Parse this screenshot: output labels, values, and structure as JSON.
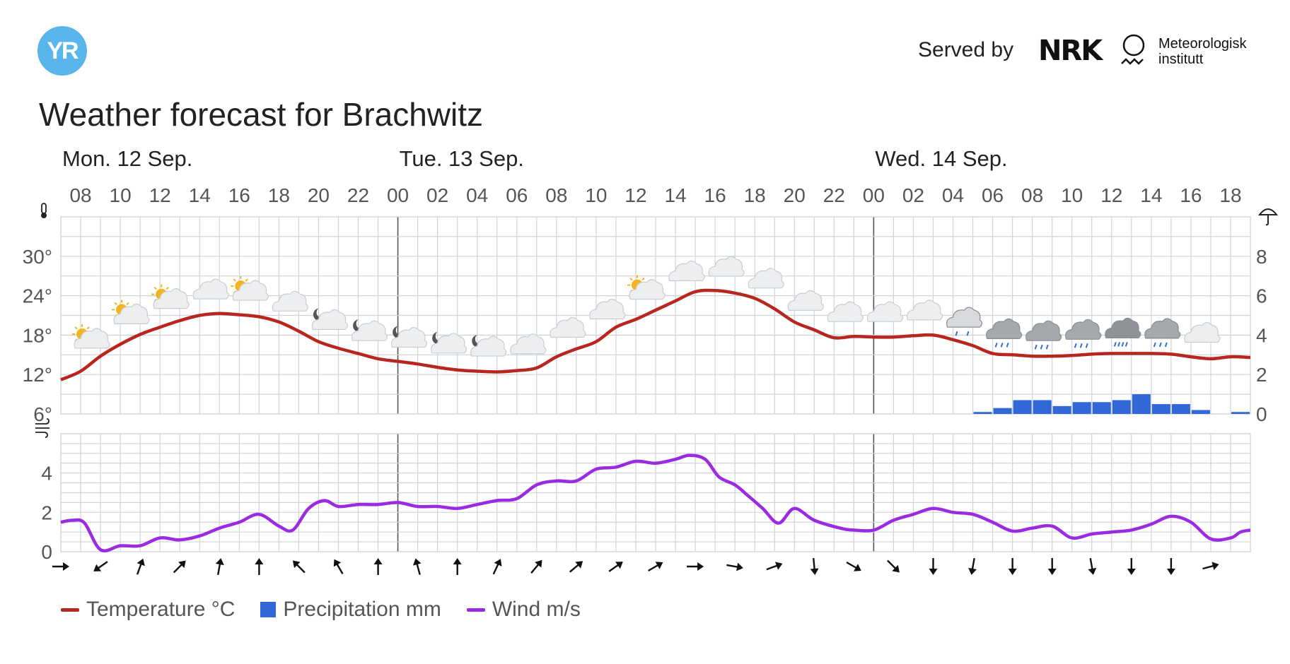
{
  "header": {
    "logo_text": "YR",
    "served_by": "Served by",
    "nrk_text": "NRK",
    "met_line1": "Meteorologisk",
    "met_line2": "institutt",
    "title": "Weather forecast for Brachwitz"
  },
  "colors": {
    "temperature": "#b8271f",
    "precipitation": "#3167d6",
    "wind": "#9a2be0",
    "grid": "#cfd3d8",
    "logo": "#59b6ec"
  },
  "legend": [
    {
      "label": "Temperature °C",
      "kind": "line",
      "color": "#b8271f"
    },
    {
      "label": "Precipitation mm",
      "kind": "box",
      "color": "#3167d6"
    },
    {
      "label": "Wind m/s",
      "kind": "line",
      "color": "#9a2be0"
    }
  ],
  "icons": {
    "temperature_axis": "thermometer-icon",
    "precipitation_axis": "umbrella-icon",
    "wind_axis": "wind-icon"
  },
  "chart_data": {
    "type": "line",
    "x_start_hour": 7,
    "hours": 60,
    "days": [
      {
        "label": "Mon. 12 Sep.",
        "start_hour": 7
      },
      {
        "label": "Tue. 13 Sep.",
        "start_hour": 24
      },
      {
        "label": "Wed. 14 Sep.",
        "start_hour": 48
      }
    ],
    "hour_ticks": [
      "08",
      "10",
      "12",
      "14",
      "16",
      "18",
      "20",
      "22",
      "00",
      "02",
      "04",
      "06",
      "08",
      "10",
      "12",
      "14",
      "16",
      "18",
      "20",
      "22",
      "00",
      "02",
      "04",
      "06",
      "08",
      "10",
      "12",
      "14",
      "16",
      "18"
    ],
    "temperature_axis": {
      "ticks": [
        "30°",
        "24°",
        "18°",
        "12°",
        "6°"
      ],
      "ylim": [
        6,
        36
      ]
    },
    "precipitation_axis": {
      "ticks": [
        "8",
        "6",
        "4",
        "2",
        "0"
      ],
      "ylim": [
        0,
        10
      ]
    },
    "wind_axis": {
      "ticks": [
        "4",
        "2",
        "0"
      ],
      "ylim": [
        0,
        6
      ]
    },
    "temperature_series": {
      "name": "Temperature °C",
      "x": [
        7,
        8,
        9,
        10,
        11,
        12,
        13,
        14,
        15,
        16,
        17,
        18,
        19,
        20,
        21,
        22,
        23,
        24,
        25,
        26,
        27,
        28,
        29,
        30,
        31,
        32,
        33,
        34,
        35,
        36,
        37,
        38,
        39,
        40,
        41,
        42,
        43,
        44,
        45,
        46,
        47,
        48,
        49,
        50,
        51,
        52,
        53,
        54,
        55,
        56,
        57,
        58,
        59,
        60,
        61,
        62,
        63,
        64,
        65,
        66,
        67
      ],
      "y": [
        11.2,
        12.5,
        14.8,
        16.6,
        18.1,
        19.2,
        20.2,
        21,
        21.3,
        21.1,
        20.8,
        20,
        18.6,
        17,
        16,
        15.2,
        14.4,
        14,
        13.6,
        13.1,
        12.7,
        12.5,
        12.4,
        12.6,
        13,
        14.7,
        15.9,
        17,
        19.2,
        20.4,
        21.8,
        23.2,
        24.6,
        24.8,
        24.4,
        23.6,
        22,
        20,
        18.8,
        17.6,
        17.8,
        17.7,
        17.7,
        17.9,
        18,
        17.3,
        16.4,
        15.2,
        15,
        14.8,
        14.8,
        14.9,
        15.1,
        15.2,
        15.2,
        15.2,
        15.1,
        14.7,
        14.4,
        14.7,
        14.6
      ],
      "color": "#b8271f"
    },
    "precipitation_series": {
      "name": "Precipitation mm",
      "hours": [
        53,
        54,
        55,
        56,
        57,
        58,
        59,
        60,
        61,
        62,
        63,
        64,
        66
      ],
      "values": [
        0.1,
        0.3,
        0.7,
        0.7,
        0.4,
        0.6,
        0.6,
        0.7,
        1,
        0.5,
        0.5,
        0.2,
        0.1
      ],
      "color": "#3167d6"
    },
    "wind_series": {
      "name": "Wind m/s",
      "x": [
        7,
        7.6,
        8.2,
        9,
        10,
        11,
        12,
        13,
        14,
        15,
        16,
        17,
        18,
        18.7,
        19.5,
        20.3,
        21,
        22,
        23,
        24,
        25,
        26,
        27,
        28,
        29,
        30,
        31,
        32,
        33,
        34,
        35,
        36,
        37,
        38,
        38.7,
        39.5,
        40.2,
        41,
        41.6,
        42.4,
        43.2,
        44,
        45,
        46.3,
        47,
        48,
        49,
        50,
        51,
        52,
        53,
        54,
        55,
        56,
        57,
        58,
        59,
        60,
        61,
        62,
        63,
        64,
        65,
        66,
        66.5,
        67
      ],
      "y": [
        1.5,
        1.6,
        1.45,
        0.1,
        0.3,
        0.3,
        0.7,
        0.6,
        0.8,
        1.2,
        1.5,
        1.9,
        1.3,
        1.1,
        2.2,
        2.6,
        2.3,
        2.4,
        2.4,
        2.5,
        2.3,
        2.3,
        2.2,
        2.4,
        2.6,
        2.7,
        3.4,
        3.6,
        3.6,
        4.2,
        4.3,
        4.6,
        4.5,
        4.7,
        4.9,
        4.7,
        3.8,
        3.4,
        2.9,
        2.2,
        1.45,
        2.2,
        1.6,
        1.2,
        1.1,
        1.1,
        1.6,
        1.9,
        2.2,
        2.0,
        1.9,
        1.5,
        1.05,
        1.2,
        1.3,
        0.7,
        0.9,
        1.0,
        1.1,
        1.4,
        1.8,
        1.5,
        0.65,
        0.7,
        1.0,
        1.1
      ],
      "color": "#9a2be0"
    },
    "weather_icons": [
      {
        "hour": 8,
        "type": "sun-cloud"
      },
      {
        "hour": 10,
        "type": "sun-cloud"
      },
      {
        "hour": 12,
        "type": "sun-cloud"
      },
      {
        "hour": 14,
        "type": "cloud"
      },
      {
        "hour": 16,
        "type": "sun-cloud"
      },
      {
        "hour": 18,
        "type": "cloud"
      },
      {
        "hour": 20,
        "type": "moon-cloud"
      },
      {
        "hour": 22,
        "type": "moon-cloud"
      },
      {
        "hour": 24,
        "type": "moon-cloud"
      },
      {
        "hour": 26,
        "type": "moon-cloud"
      },
      {
        "hour": 28,
        "type": "moon-cloud"
      },
      {
        "hour": 30,
        "type": "cloud"
      },
      {
        "hour": 32,
        "type": "cloud"
      },
      {
        "hour": 34,
        "type": "cloud"
      },
      {
        "hour": 36,
        "type": "sun-cloud"
      },
      {
        "hour": 38,
        "type": "cloud"
      },
      {
        "hour": 40,
        "type": "cloud"
      },
      {
        "hour": 42,
        "type": "cloud"
      },
      {
        "hour": 44,
        "type": "cloud"
      },
      {
        "hour": 46,
        "type": "cloud"
      },
      {
        "hour": 48,
        "type": "cloud"
      },
      {
        "hour": 50,
        "type": "cloud"
      },
      {
        "hour": 52,
        "type": "light-rain"
      },
      {
        "hour": 54,
        "type": "rain"
      },
      {
        "hour": 56,
        "type": "rain"
      },
      {
        "hour": 58,
        "type": "rain"
      },
      {
        "hour": 60,
        "type": "heavy-rain"
      },
      {
        "hour": 62,
        "type": "rain"
      },
      {
        "hour": 64,
        "type": "cloud"
      }
    ],
    "wind_directions_deg": [
      90,
      235,
      20,
      45,
      10,
      0,
      315,
      330,
      0,
      345,
      0,
      25,
      40,
      50,
      55,
      60,
      90,
      100,
      70,
      175,
      120,
      135,
      180,
      190,
      180,
      180,
      170,
      180,
      180,
      75
    ]
  }
}
